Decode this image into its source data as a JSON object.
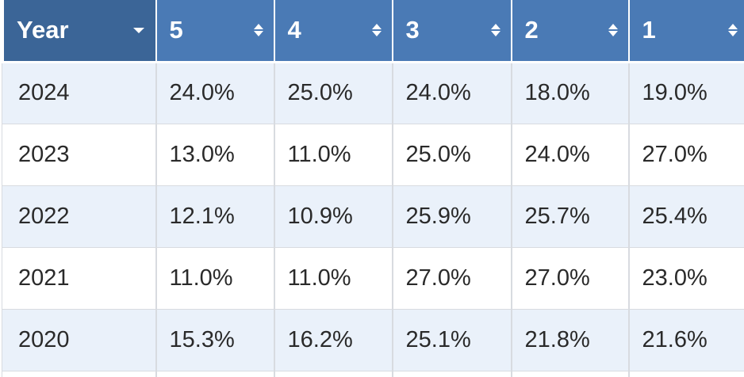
{
  "table": {
    "columns": [
      {
        "label": "Year",
        "control": "dropdown-icon"
      },
      {
        "label": "5",
        "control": "sort-icon"
      },
      {
        "label": "4",
        "control": "sort-icon"
      },
      {
        "label": "3",
        "control": "sort-icon"
      },
      {
        "label": "2",
        "control": "sort-icon"
      },
      {
        "label": "1",
        "control": "sort-icon"
      }
    ],
    "rows": [
      [
        "2024",
        "24.0%",
        "25.0%",
        "24.0%",
        "18.0%",
        "19.0%"
      ],
      [
        "2023",
        "13.0%",
        "11.0%",
        "25.0%",
        "24.0%",
        "27.0%"
      ],
      [
        "2022",
        "12.1%",
        "10.9%",
        "25.9%",
        "25.7%",
        "25.4%"
      ],
      [
        "2021",
        "11.0%",
        "11.0%",
        "27.0%",
        "27.0%",
        "23.0%"
      ],
      [
        "2020",
        "15.3%",
        "16.2%",
        "25.1%",
        "21.8%",
        "21.6%"
      ]
    ]
  },
  "colors": {
    "header_first": "#3b6597",
    "header": "#4a7ab5",
    "row_stripe": "#eaf1fa",
    "row_plain": "#ffffff",
    "border": "#d8dbe0"
  }
}
